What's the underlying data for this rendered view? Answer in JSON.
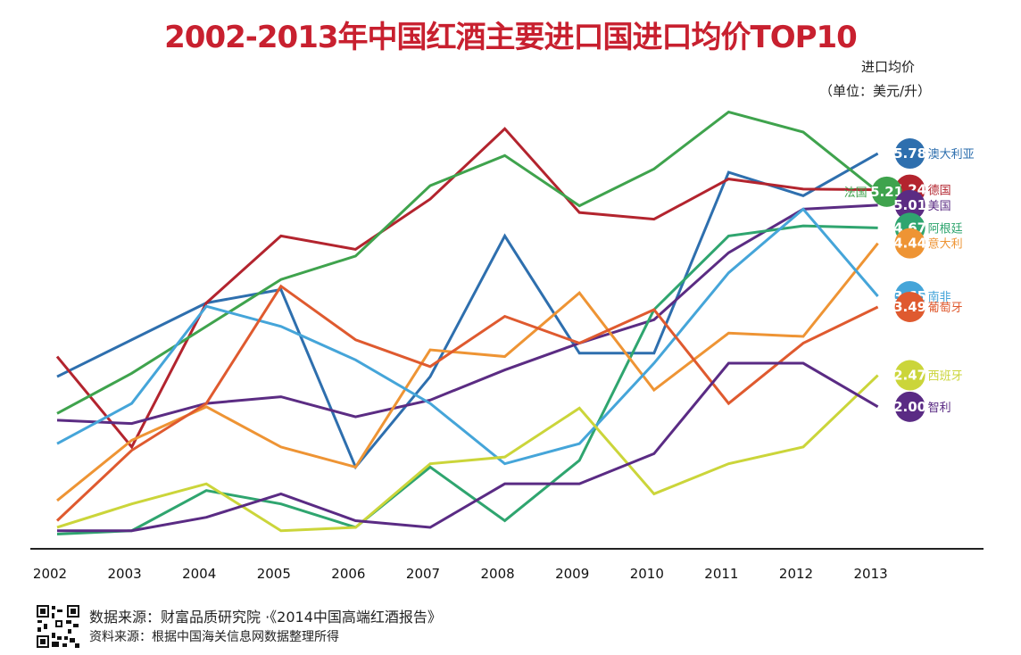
{
  "title": "2002-2013年中国红酒主要进口国进口均价TOP10",
  "unit_label": "进口均价",
  "unit_sub": "（单位：美元/升）",
  "source": "数据来源：财富品质研究院 ·《2014中国高端红酒报告》",
  "material": "资料来源：根据中国海关信息网数据整理所得",
  "chart_data": {
    "type": "line",
    "x": [
      "2002",
      "2003",
      "2004",
      "2005",
      "2006",
      "2007",
      "2008",
      "2009",
      "2010",
      "2011",
      "2012",
      "2013"
    ],
    "ylabel": "进口均价（单位：美元/升）",
    "ylim": [
      0,
      6.5
    ],
    "grid": false,
    "series": [
      {
        "name": "澳大利亚",
        "color": "#2e6fae",
        "values": [
          2.45,
          3.0,
          3.55,
          3.75,
          1.1,
          2.45,
          4.55,
          2.8,
          2.8,
          5.5,
          5.15,
          5.78
        ],
        "label": "5.78"
      },
      {
        "name": "德国",
        "color": "#b3242e",
        "values": [
          2.75,
          1.4,
          3.55,
          4.55,
          4.35,
          5.1,
          6.15,
          4.9,
          4.8,
          5.4,
          5.25,
          5.24
        ],
        "label": "5.24"
      },
      {
        "name": "法国",
        "color": "#3fa34d",
        "values": [
          1.9,
          2.5,
          3.2,
          3.9,
          4.25,
          5.3,
          5.75,
          5.0,
          5.55,
          6.4,
          6.1,
          5.21
        ],
        "label": "5.21"
      },
      {
        "name": "美国",
        "color": "#5b2c83",
        "values": [
          1.8,
          1.75,
          2.05,
          2.15,
          1.85,
          2.1,
          2.55,
          2.95,
          3.3,
          4.3,
          4.95,
          5.01
        ],
        "label": "5.01"
      },
      {
        "name": "阿根廷",
        "color": "#2fa56f",
        "values": [
          0.1,
          0.15,
          0.75,
          0.55,
          0.2,
          1.1,
          0.3,
          1.2,
          3.45,
          4.55,
          4.7,
          4.67
        ],
        "label": "4.67"
      },
      {
        "name": "意大利",
        "color": "#ee9434",
        "values": [
          0.6,
          1.5,
          2.0,
          1.4,
          1.1,
          2.85,
          2.75,
          3.7,
          2.25,
          3.1,
          3.05,
          4.44
        ],
        "label": "4.44"
      },
      {
        "name": "南非",
        "color": "#45a5d9",
        "values": [
          1.45,
          2.05,
          3.5,
          3.2,
          2.7,
          2.05,
          1.15,
          1.45,
          2.65,
          4.0,
          4.95,
          3.65
        ],
        "label": "3.65"
      },
      {
        "name": "葡萄牙",
        "color": "#df5a2f",
        "values": [
          0.3,
          1.35,
          2.05,
          3.8,
          3.0,
          2.6,
          3.35,
          2.95,
          3.45,
          2.05,
          2.95,
          3.49
        ],
        "label": "3.49"
      },
      {
        "name": "西班牙",
        "color": "#cbd53a",
        "values": [
          0.2,
          0.55,
          0.85,
          0.15,
          0.2,
          1.15,
          1.25,
          1.98,
          0.7,
          1.15,
          1.4,
          2.47
        ],
        "label": "2.47"
      },
      {
        "name": "智利",
        "color": "#5a2b84",
        "values": [
          0.15,
          0.15,
          0.35,
          0.7,
          0.3,
          0.2,
          0.85,
          0.85,
          1.3,
          2.65,
          2.65,
          2.0
        ],
        "label": "2.00"
      }
    ]
  }
}
